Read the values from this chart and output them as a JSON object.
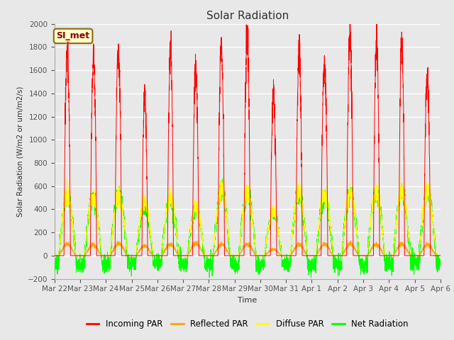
{
  "title": "Solar Radiation",
  "ylabel": "Solar Radiation (W/m2 or um/m2/s)",
  "xlabel": "Time",
  "ylim": [
    -200,
    2000
  ],
  "yticks": [
    -200,
    0,
    200,
    400,
    600,
    800,
    1000,
    1200,
    1400,
    1600,
    1800,
    2000
  ],
  "bg_color": "#e8e8e8",
  "grid_color": "white",
  "colors": {
    "incoming": "red",
    "reflected": "orange",
    "diffuse": "yellow",
    "net": "lime"
  },
  "legend_label": "SI_met",
  "legend_box_facecolor": "#ffffcc",
  "legend_box_edgecolor": "#8b6914",
  "x_tick_labels": [
    "Mar 22",
    "Mar 23",
    "Mar 24",
    "Mar 25",
    "Mar 26",
    "Mar 27",
    "Mar 28",
    "Mar 29",
    "Mar 30",
    "Mar 31",
    "Apr 1",
    "Apr 2",
    "Apr 3",
    "Apr 4",
    "Apr 5",
    "Apr 6"
  ],
  "n_days": 15,
  "pts_per_day": 288,
  "incoming_peaks": [
    1750,
    1700,
    1790,
    1370,
    1790,
    1600,
    1800,
    1860,
    1400,
    1730,
    1670,
    1860,
    1850,
    1850,
    1530
  ],
  "reflected_peaks": [
    100,
    95,
    105,
    85,
    100,
    105,
    95,
    100,
    55,
    95,
    100,
    100,
    95,
    100,
    95
  ],
  "diffuse_peaks": [
    520,
    510,
    530,
    460,
    490,
    420,
    570,
    540,
    380,
    540,
    530,
    540,
    540,
    560,
    550
  ],
  "net_peaks": [
    510,
    500,
    525,
    400,
    480,
    400,
    560,
    530,
    370,
    520,
    505,
    530,
    535,
    550,
    540
  ],
  "night_net": [
    -75,
    -80,
    -70,
    -65,
    -60,
    -75,
    -70,
    -80,
    -65,
    -75,
    -70,
    -80,
    -75,
    -70,
    -65
  ]
}
